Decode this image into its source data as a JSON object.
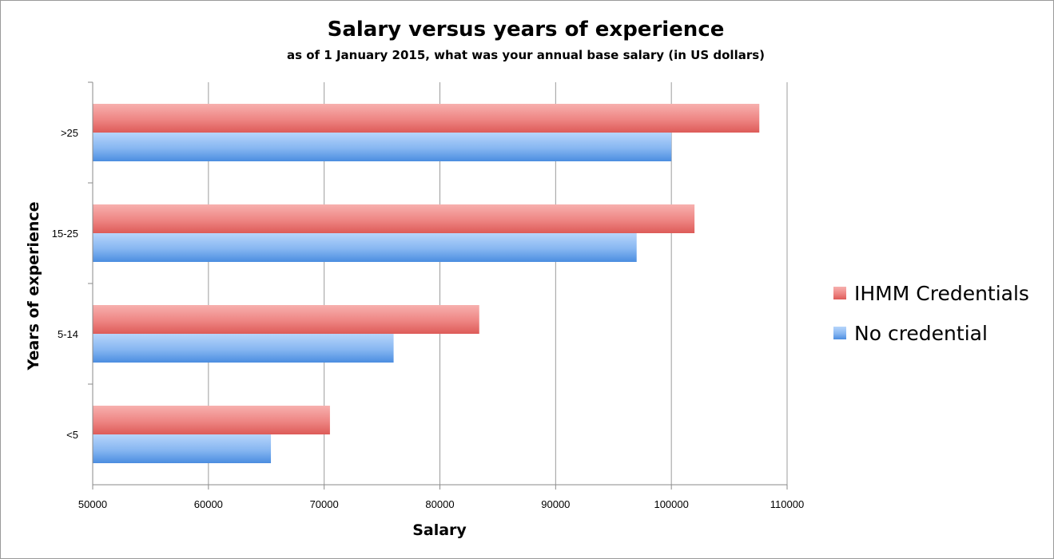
{
  "chart_data": {
    "type": "bar",
    "orientation": "horizontal",
    "title": "Salary versus years of experience",
    "subtitle": "as of 1 January 2015, what was your annual base salary (in US dollars)",
    "xlabel": "Salary",
    "ylabel": "Years of experience",
    "xlim": [
      50000,
      110000
    ],
    "xticks": [
      50000,
      60000,
      70000,
      80000,
      90000,
      100000,
      110000
    ],
    "xtick_labels": [
      "50000",
      "60000",
      "70000",
      "80000",
      "90000",
      "100000",
      "110000"
    ],
    "categories": [
      "<5",
      "5-14",
      "15-25",
      ">25"
    ],
    "series": [
      {
        "name": "IHMM Credentials",
        "color": "#e86a68",
        "values": [
          70500,
          83400,
          102000,
          107600
        ]
      },
      {
        "name": "No credential",
        "color": "#5f9de6",
        "values": [
          65400,
          76000,
          97000,
          100000
        ]
      }
    ],
    "grid": true,
    "legend_position": "right"
  }
}
